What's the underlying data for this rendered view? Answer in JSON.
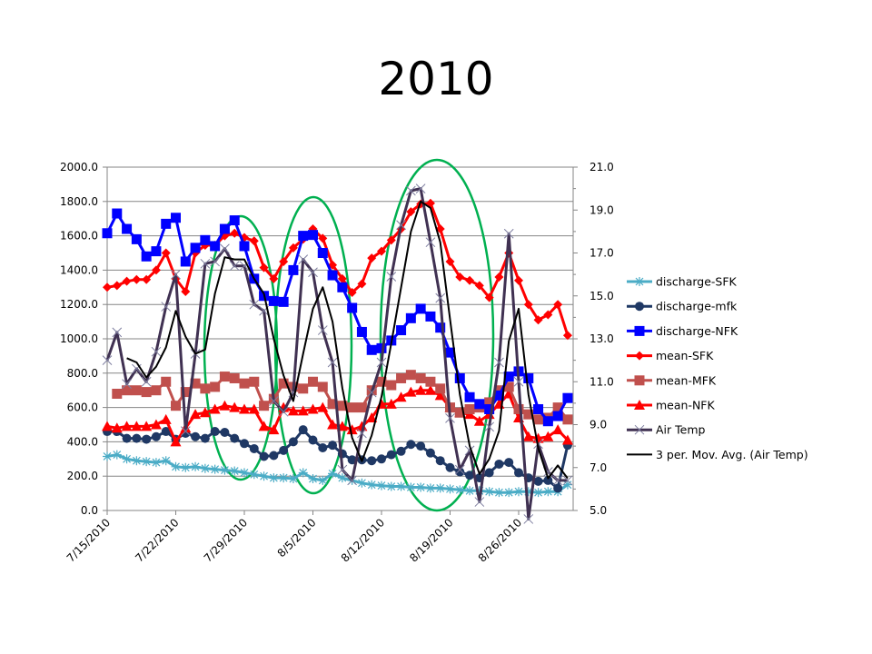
{
  "chart_data": {
    "type": "line",
    "title": "2010",
    "xlabel": "",
    "ylabel": "",
    "y2label": "",
    "x_start": "7/15/2010",
    "x_tick_labels": [
      "7/15/2010",
      "7/22/2010",
      "7/29/2010",
      "8/5/2010",
      "8/12/2010",
      "8/19/2010",
      "8/26/2010"
    ],
    "y_ticks": [
      "0.0",
      "200.0",
      "400.0",
      "600.0",
      "800.0",
      "1000.0",
      "1200.0",
      "1400.0",
      "1600.0",
      "1800.0",
      "2000.0"
    ],
    "y2_ticks": [
      "5.0",
      "7.0",
      "9.0",
      "11.0",
      "13.0",
      "15.0",
      "17.0",
      "19.0",
      "21.0"
    ],
    "ylim": [
      0,
      2000
    ],
    "y2lim": [
      5,
      21
    ],
    "grid": true,
    "legend_position": "right",
    "annotations": [
      "three green ellipses highlighting peaks near 7/28, 8/5 and 8/18"
    ],
    "series": [
      {
        "name": "discharge-SFK",
        "axis": "left",
        "color": "#4BACC6",
        "marker": "star",
        "values": [
          315,
          325,
          300,
          290,
          285,
          280,
          290,
          255,
          250,
          255,
          245,
          240,
          235,
          230,
          220,
          210,
          200,
          190,
          190,
          185,
          220,
          185,
          175,
          215,
          190,
          175,
          160,
          150,
          145,
          140,
          140,
          135,
          135,
          130,
          130,
          125,
          120,
          115,
          115,
          110,
          105,
          105,
          110,
          110,
          105,
          110,
          110,
          150
        ]
      },
      {
        "name": "discharge-mfk",
        "axis": "left",
        "color": "#1F3864",
        "marker": "circle",
        "values": [
          460,
          460,
          420,
          420,
          415,
          430,
          460,
          415,
          450,
          430,
          420,
          460,
          455,
          420,
          390,
          360,
          315,
          320,
          350,
          400,
          470,
          410,
          365,
          380,
          330,
          295,
          295,
          290,
          300,
          325,
          345,
          385,
          375,
          335,
          290,
          250,
          225,
          205,
          190,
          220,
          270,
          280,
          220,
          190,
          170,
          175,
          130,
          380
        ]
      },
      {
        "name": "discharge-NFK",
        "axis": "left",
        "color": "#0000FF",
        "marker": "square",
        "values": [
          1615,
          1730,
          1640,
          1580,
          1480,
          1510,
          1670,
          1705,
          1450,
          1530,
          1575,
          1540,
          1640,
          1690,
          1540,
          1350,
          1250,
          1220,
          1215,
          1400,
          1600,
          1605,
          1500,
          1370,
          1300,
          1180,
          1040,
          935,
          945,
          990,
          1050,
          1120,
          1175,
          1130,
          1065,
          920,
          770,
          660,
          620,
          590,
          670,
          780,
          810,
          770,
          590,
          520,
          550,
          655
        ]
      },
      {
        "name": "mean-SFK",
        "axis": "left",
        "color": "#FF0000",
        "marker": "diamond",
        "values": [
          1300,
          1310,
          1335,
          1345,
          1345,
          1400,
          1500,
          1350,
          1275,
          1500,
          1545,
          1545,
          1600,
          1615,
          1590,
          1570,
          1415,
          1350,
          1450,
          1530,
          1580,
          1640,
          1585,
          1430,
          1350,
          1270,
          1320,
          1470,
          1510,
          1575,
          1640,
          1740,
          1785,
          1790,
          1640,
          1450,
          1360,
          1340,
          1310,
          1240,
          1360,
          1500,
          1340,
          1200,
          1110,
          1140,
          1200,
          1020
        ]
      },
      {
        "name": "mean-MFK",
        "axis": "left",
        "color": "#C0504D",
        "marker": "square",
        "values": [
          null,
          680,
          700,
          700,
          690,
          700,
          750,
          610,
          690,
          740,
          710,
          720,
          780,
          770,
          740,
          750,
          610,
          650,
          740,
          720,
          710,
          750,
          720,
          620,
          610,
          600,
          600,
          700,
          750,
          730,
          770,
          790,
          770,
          750,
          710,
          600,
          570,
          590,
          600,
          630,
          700,
          720,
          590,
          560,
          530,
          540,
          600,
          530
        ]
      },
      {
        "name": "mean-NFK",
        "axis": "left",
        "color": "#FF0000",
        "marker": "triangle",
        "values": [
          490,
          480,
          490,
          490,
          490,
          500,
          530,
          400,
          480,
          560,
          570,
          590,
          610,
          600,
          590,
          590,
          490,
          470,
          600,
          580,
          580,
          590,
          600,
          500,
          490,
          470,
          490,
          540,
          620,
          620,
          660,
          690,
          700,
          700,
          670,
          600,
          570,
          560,
          520,
          560,
          620,
          680,
          540,
          430,
          420,
          430,
          470,
          410
        ]
      },
      {
        "name": "Air Temp",
        "axis": "right",
        "color": "#403152",
        "marker": "x",
        "values": [
          12.0,
          13.3,
          10.9,
          11.6,
          11.0,
          12.4,
          14.5,
          16.0,
          8.7,
          12.3,
          16.5,
          16.6,
          17.2,
          16.4,
          16.4,
          14.6,
          14.3,
          10.1,
          9.6,
          10.5,
          16.7,
          16.1,
          13.4,
          11.9,
          6.9,
          6.4,
          8.6,
          10.5,
          11.9,
          15.9,
          18.3,
          19.9,
          20.0,
          17.5,
          14.9,
          9.3,
          6.9,
          7.8,
          5.4,
          8.9,
          11.9,
          17.9,
          11.0,
          4.6,
          8.1,
          6.8,
          6.4,
          6.4
        ]
      },
      {
        "name": "3 per. Mov. Avg. (Air Temp)",
        "axis": "right",
        "color": "#000000",
        "marker": "none",
        "values": [
          null,
          null,
          12.1,
          11.9,
          11.2,
          11.7,
          12.6,
          14.3,
          13.1,
          12.3,
          12.5,
          15.1,
          16.8,
          16.7,
          16.7,
          15.8,
          15.1,
          13.0,
          11.3,
          10.1,
          12.3,
          14.4,
          15.4,
          13.8,
          10.7,
          8.4,
          7.3,
          8.5,
          10.3,
          12.8,
          15.4,
          18.0,
          19.4,
          19.1,
          17.5,
          13.9,
          10.4,
          8.0,
          6.7,
          7.4,
          8.7,
          12.9,
          14.4,
          10.4,
          7.9,
          6.5,
          7.1,
          6.5
        ]
      }
    ]
  }
}
